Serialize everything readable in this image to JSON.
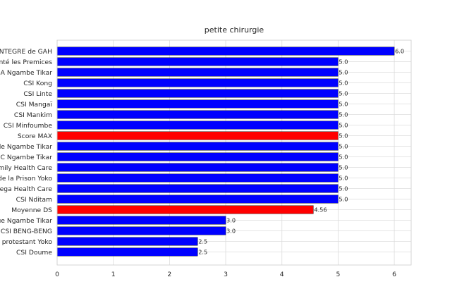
{
  "chart_data": {
    "type": "bar",
    "orientation": "horizontal",
    "title": "petite chirurgie",
    "xlabel": "",
    "ylabel": "",
    "xlim": [
      0,
      6.3
    ],
    "xticks": [
      0,
      1,
      2,
      3,
      4,
      5,
      6
    ],
    "grid": true,
    "categories": [
      "CSI INTEGRE  de GAH",
      "Centre de Santé les Premices",
      "CMA Ngambe Tikar",
      "CSI Kong",
      "CSI Linte",
      "CSI Mangaï",
      "CSI Mankim",
      "CSI Minfoumbe",
      "Score MAX",
      "CSI de Ngambe Tikar",
      "CSC Ngambe Tikar",
      "Family Health Care",
      "Infirmerie de la Prison Yoko",
      "Omega Health  Care",
      "CSI Nditam",
      "Moyenne DS",
      "CSI Catholique Ngambe Tikar",
      "CSI BENG-BENG",
      "CSI protestant Yoko",
      "CSI Doume"
    ],
    "values": [
      6.0,
      5.0,
      5.0,
      5.0,
      5.0,
      5.0,
      5.0,
      5.0,
      5.0,
      5.0,
      5.0,
      5.0,
      5.0,
      5.0,
      5.0,
      4.56,
      3.0,
      3.0,
      2.5,
      2.5
    ],
    "value_labels": [
      "6.0",
      "5.0",
      "5.0",
      "5.0",
      "5.0",
      "5.0",
      "5.0",
      "5.0",
      "5.0",
      "5.0",
      "5.0",
      "5.0",
      "5.0",
      "5.0",
      "5.0",
      "4.56",
      "3.0",
      "3.0",
      "2.5",
      "2.5"
    ],
    "bar_colors": [
      "#0000ff",
      "#0000ff",
      "#0000ff",
      "#0000ff",
      "#0000ff",
      "#0000ff",
      "#0000ff",
      "#0000ff",
      "#ff0000",
      "#0000ff",
      "#0000ff",
      "#0000ff",
      "#0000ff",
      "#0000ff",
      "#0000ff",
      "#ff0000",
      "#0000ff",
      "#0000ff",
      "#0000ff",
      "#0000ff"
    ]
  }
}
